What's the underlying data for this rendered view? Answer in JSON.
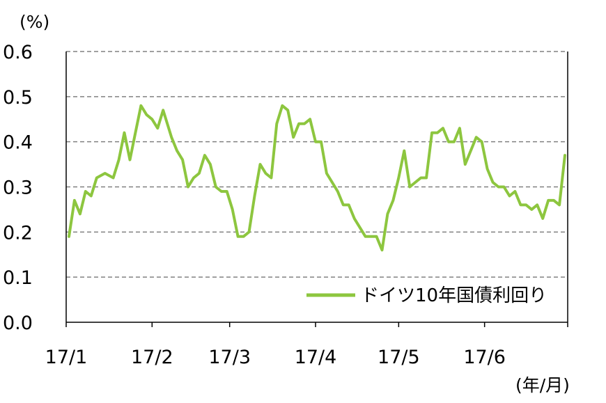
{
  "chart_data": {
    "type": "line",
    "y_unit": "(%)",
    "x_unit": "(年/月)",
    "ylim": [
      0,
      0.6
    ],
    "yticks": [
      "0.0",
      "0.1",
      "0.2",
      "0.3",
      "0.4",
      "0.5",
      "0.6"
    ],
    "xticks": [
      "17/1",
      "17/2",
      "17/3",
      "17/4",
      "17/5",
      "17/6"
    ],
    "grid": true,
    "legend_position": "bottom-right",
    "series": [
      {
        "name": "ドイツ10年国債利回り",
        "color": "#8dc63f",
        "x_dates": [
          "2017-01-02",
          "2017-01-04",
          "2017-01-06",
          "2017-01-08",
          "2017-01-10",
          "2017-01-12",
          "2017-01-15",
          "2017-01-18",
          "2017-01-20",
          "2017-01-22",
          "2017-01-24",
          "2017-01-26",
          "2017-01-28",
          "2017-01-30",
          "2017-02-01",
          "2017-02-03",
          "2017-02-05",
          "2017-02-08",
          "2017-02-10",
          "2017-02-12",
          "2017-02-14",
          "2017-02-16",
          "2017-02-18",
          "2017-02-20",
          "2017-02-22",
          "2017-02-24",
          "2017-02-26",
          "2017-02-28",
          "2017-03-02",
          "2017-03-04",
          "2017-03-06",
          "2017-03-08",
          "2017-03-10",
          "2017-03-12",
          "2017-03-14",
          "2017-03-16",
          "2017-03-18",
          "2017-03-20",
          "2017-03-22",
          "2017-03-24",
          "2017-03-26",
          "2017-03-28",
          "2017-03-30",
          "2017-04-01",
          "2017-04-03",
          "2017-04-05",
          "2017-04-07",
          "2017-04-09",
          "2017-04-11",
          "2017-04-13",
          "2017-04-15",
          "2017-04-17",
          "2017-04-19",
          "2017-04-21",
          "2017-04-23",
          "2017-04-25",
          "2017-04-27",
          "2017-04-29",
          "2017-05-01",
          "2017-05-03",
          "2017-05-05",
          "2017-05-07",
          "2017-05-09",
          "2017-05-11",
          "2017-05-13",
          "2017-05-15",
          "2017-05-17",
          "2017-05-19",
          "2017-05-21",
          "2017-05-23",
          "2017-05-25",
          "2017-05-27",
          "2017-05-29",
          "2017-05-31",
          "2017-06-02",
          "2017-06-04",
          "2017-06-06",
          "2017-06-08",
          "2017-06-10",
          "2017-06-12",
          "2017-06-14",
          "2017-06-16",
          "2017-06-18",
          "2017-06-20",
          "2017-06-22",
          "2017-06-24",
          "2017-06-26",
          "2017-06-28",
          "2017-06-30"
        ],
        "values": [
          0.19,
          0.27,
          0.24,
          0.29,
          0.28,
          0.32,
          0.33,
          0.32,
          0.36,
          0.42,
          0.36,
          0.42,
          0.48,
          0.46,
          0.45,
          0.43,
          0.47,
          0.41,
          0.38,
          0.36,
          0.3,
          0.32,
          0.33,
          0.37,
          0.35,
          0.3,
          0.29,
          0.29,
          0.25,
          0.19,
          0.19,
          0.2,
          0.28,
          0.35,
          0.33,
          0.32,
          0.44,
          0.48,
          0.47,
          0.41,
          0.44,
          0.44,
          0.45,
          0.4,
          0.4,
          0.33,
          0.31,
          0.29,
          0.26,
          0.26,
          0.23,
          0.21,
          0.19,
          0.19,
          0.19,
          0.16,
          0.24,
          0.27,
          0.32,
          0.38,
          0.3,
          0.31,
          0.32,
          0.32,
          0.42,
          0.42,
          0.43,
          0.4,
          0.4,
          0.43,
          0.35,
          0.38,
          0.41,
          0.4,
          0.34,
          0.31,
          0.3,
          0.3,
          0.28,
          0.29,
          0.26,
          0.26,
          0.25,
          0.26,
          0.23,
          0.27,
          0.27,
          0.26,
          0.37
        ]
      }
    ]
  }
}
